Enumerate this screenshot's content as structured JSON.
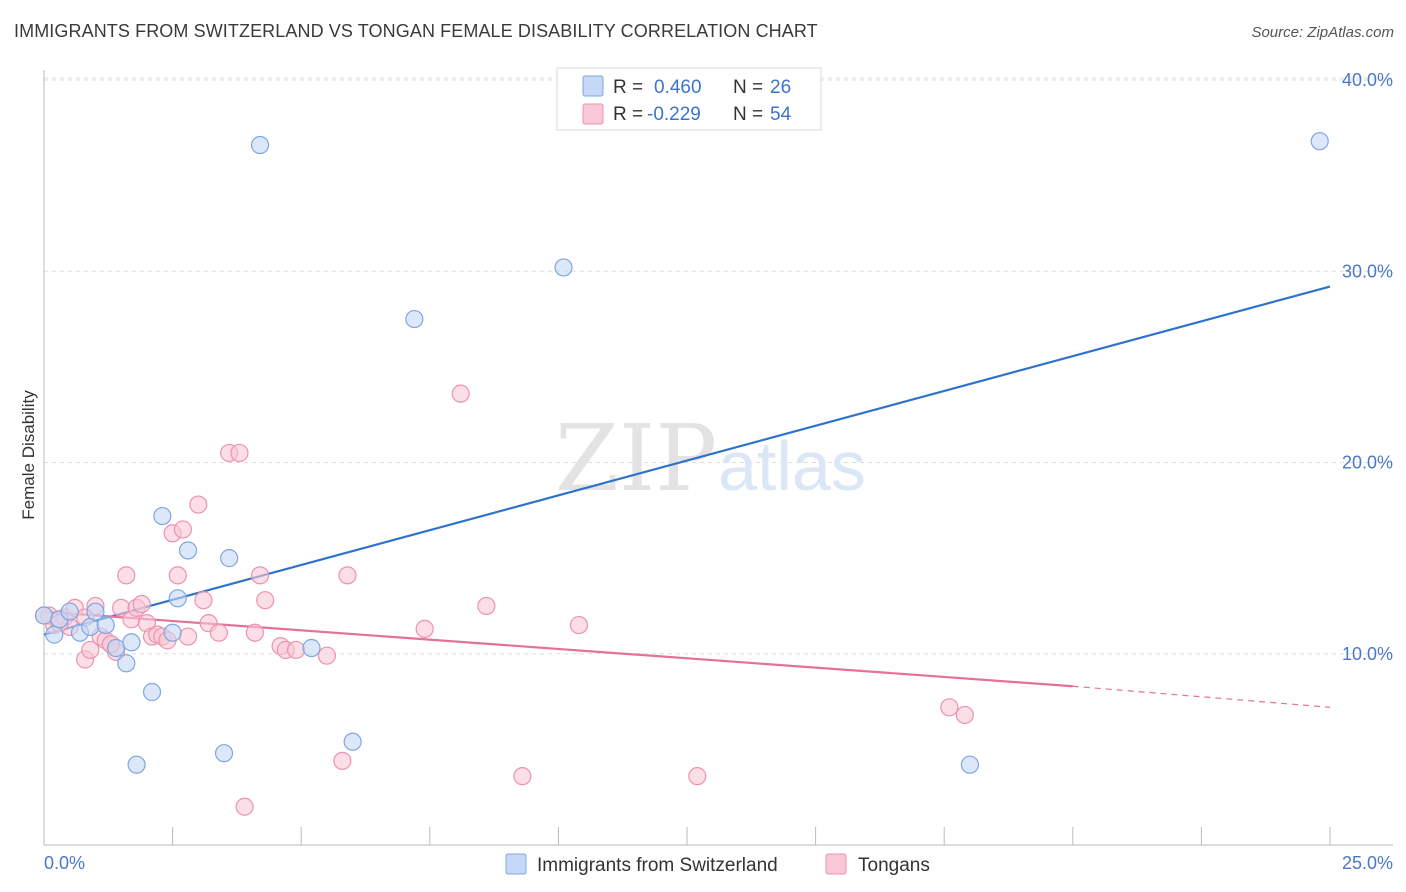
{
  "title": "IMMIGRANTS FROM SWITZERLAND VS TONGAN FEMALE DISABILITY CORRELATION CHART",
  "source": "Source: ZipAtlas.com",
  "watermark": {
    "zip": "ZIP",
    "atlas": "atlas"
  },
  "colors": {
    "blue_fill": "#c5d8f5",
    "blue_stroke": "#7fa6e0",
    "blue_line": "#2f72cc",
    "pink_fill": "#f8c8d6",
    "pink_stroke": "#ec93b0",
    "pink_line": "#e5719b",
    "grid": "#dddddd",
    "axis_text": "#4a78c8"
  },
  "legend": {
    "row1": {
      "r_label": "R = ",
      "r_value": "0.460",
      "n_label": "N = ",
      "n_value": "26"
    },
    "row2": {
      "r_label": "R = ",
      "r_value": "-0.229",
      "n_label": "N = ",
      "n_value": "54"
    }
  },
  "chart_data": {
    "type": "scatter",
    "title": "IMMIGRANTS FROM SWITZERLAND VS TONGAN FEMALE DISABILITY CORRELATION CHART",
    "xlabel": "",
    "ylabel": "Female Disability",
    "xlim": [
      0,
      25
    ],
    "ylim": [
      0,
      40
    ],
    "x_tick_labels": [
      "0.0%",
      "25.0%"
    ],
    "y_ticks": [
      10,
      20,
      30,
      40
    ],
    "y_tick_labels": [
      "10.0%",
      "20.0%",
      "30.0%",
      "40.0%"
    ],
    "grid": true,
    "series": [
      {
        "name": "Immigrants from Switzerland",
        "color": "#7fa6e0",
        "points": [
          [
            0.0,
            12.0
          ],
          [
            0.2,
            11.0
          ],
          [
            0.3,
            11.8
          ],
          [
            0.5,
            12.2
          ],
          [
            0.7,
            11.1
          ],
          [
            0.9,
            11.4
          ],
          [
            1.0,
            12.2
          ],
          [
            1.2,
            11.5
          ],
          [
            1.4,
            10.3
          ],
          [
            1.6,
            9.5
          ],
          [
            1.7,
            10.6
          ],
          [
            1.8,
            4.2
          ],
          [
            2.1,
            8.0
          ],
          [
            2.3,
            17.2
          ],
          [
            2.5,
            11.1
          ],
          [
            2.6,
            12.9
          ],
          [
            2.8,
            15.4
          ],
          [
            3.5,
            4.8
          ],
          [
            3.6,
            15.0
          ],
          [
            4.2,
            36.6
          ],
          [
            5.2,
            10.3
          ],
          [
            6.0,
            5.4
          ],
          [
            7.2,
            27.5
          ],
          [
            10.1,
            30.2
          ],
          [
            18.0,
            4.2
          ],
          [
            24.8,
            36.8
          ]
        ]
      },
      {
        "name": "Tongans",
        "color": "#ec93b0",
        "points": [
          [
            0.1,
            12.0
          ],
          [
            0.2,
            11.5
          ],
          [
            0.4,
            11.9
          ],
          [
            0.5,
            11.4
          ],
          [
            0.6,
            12.4
          ],
          [
            0.8,
            11.9
          ],
          [
            0.8,
            9.7
          ],
          [
            0.9,
            10.2
          ],
          [
            1.0,
            12.5
          ],
          [
            1.1,
            10.9
          ],
          [
            1.2,
            10.7
          ],
          [
            1.3,
            10.5
          ],
          [
            1.4,
            10.1
          ],
          [
            1.5,
            12.4
          ],
          [
            1.6,
            14.1
          ],
          [
            1.7,
            11.8
          ],
          [
            1.8,
            12.4
          ],
          [
            1.9,
            12.6
          ],
          [
            2.0,
            11.6
          ],
          [
            2.1,
            10.9
          ],
          [
            2.2,
            11.0
          ],
          [
            2.3,
            10.9
          ],
          [
            2.4,
            10.7
          ],
          [
            2.5,
            16.3
          ],
          [
            2.6,
            14.1
          ],
          [
            2.7,
            16.5
          ],
          [
            2.8,
            10.9
          ],
          [
            3.0,
            17.8
          ],
          [
            3.1,
            12.8
          ],
          [
            3.2,
            11.6
          ],
          [
            3.4,
            11.1
          ],
          [
            3.6,
            20.5
          ],
          [
            3.8,
            20.5
          ],
          [
            3.9,
            2.0
          ],
          [
            4.1,
            11.1
          ],
          [
            4.2,
            14.1
          ],
          [
            4.3,
            12.8
          ],
          [
            4.6,
            10.4
          ],
          [
            4.7,
            10.2
          ],
          [
            4.9,
            10.2
          ],
          [
            5.5,
            9.9
          ],
          [
            5.8,
            4.4
          ],
          [
            5.9,
            14.1
          ],
          [
            7.4,
            11.3
          ],
          [
            8.1,
            23.6
          ],
          [
            8.6,
            12.5
          ],
          [
            9.3,
            3.6
          ],
          [
            10.4,
            11.5
          ],
          [
            12.7,
            3.6
          ],
          [
            17.6,
            7.2
          ],
          [
            17.9,
            6.8
          ],
          [
            0.0,
            12.0
          ],
          [
            0.3,
            11.6
          ],
          [
            1.3,
            10.5
          ]
        ]
      }
    ],
    "trend_lines": [
      {
        "series": "Immigrants from Switzerland",
        "x": [
          0,
          25
        ],
        "y": [
          11.0,
          29.2
        ],
        "style": "solid"
      },
      {
        "series": "Tongans",
        "x": [
          0,
          20
        ],
        "y": [
          12.2,
          8.3
        ],
        "style": "solid"
      },
      {
        "series": "Tongans",
        "x": [
          20,
          25
        ],
        "y": [
          8.3,
          7.2
        ],
        "style": "dashed"
      }
    ],
    "legend_entries": [
      "Immigrants from Switzerland",
      "Tongans"
    ]
  }
}
